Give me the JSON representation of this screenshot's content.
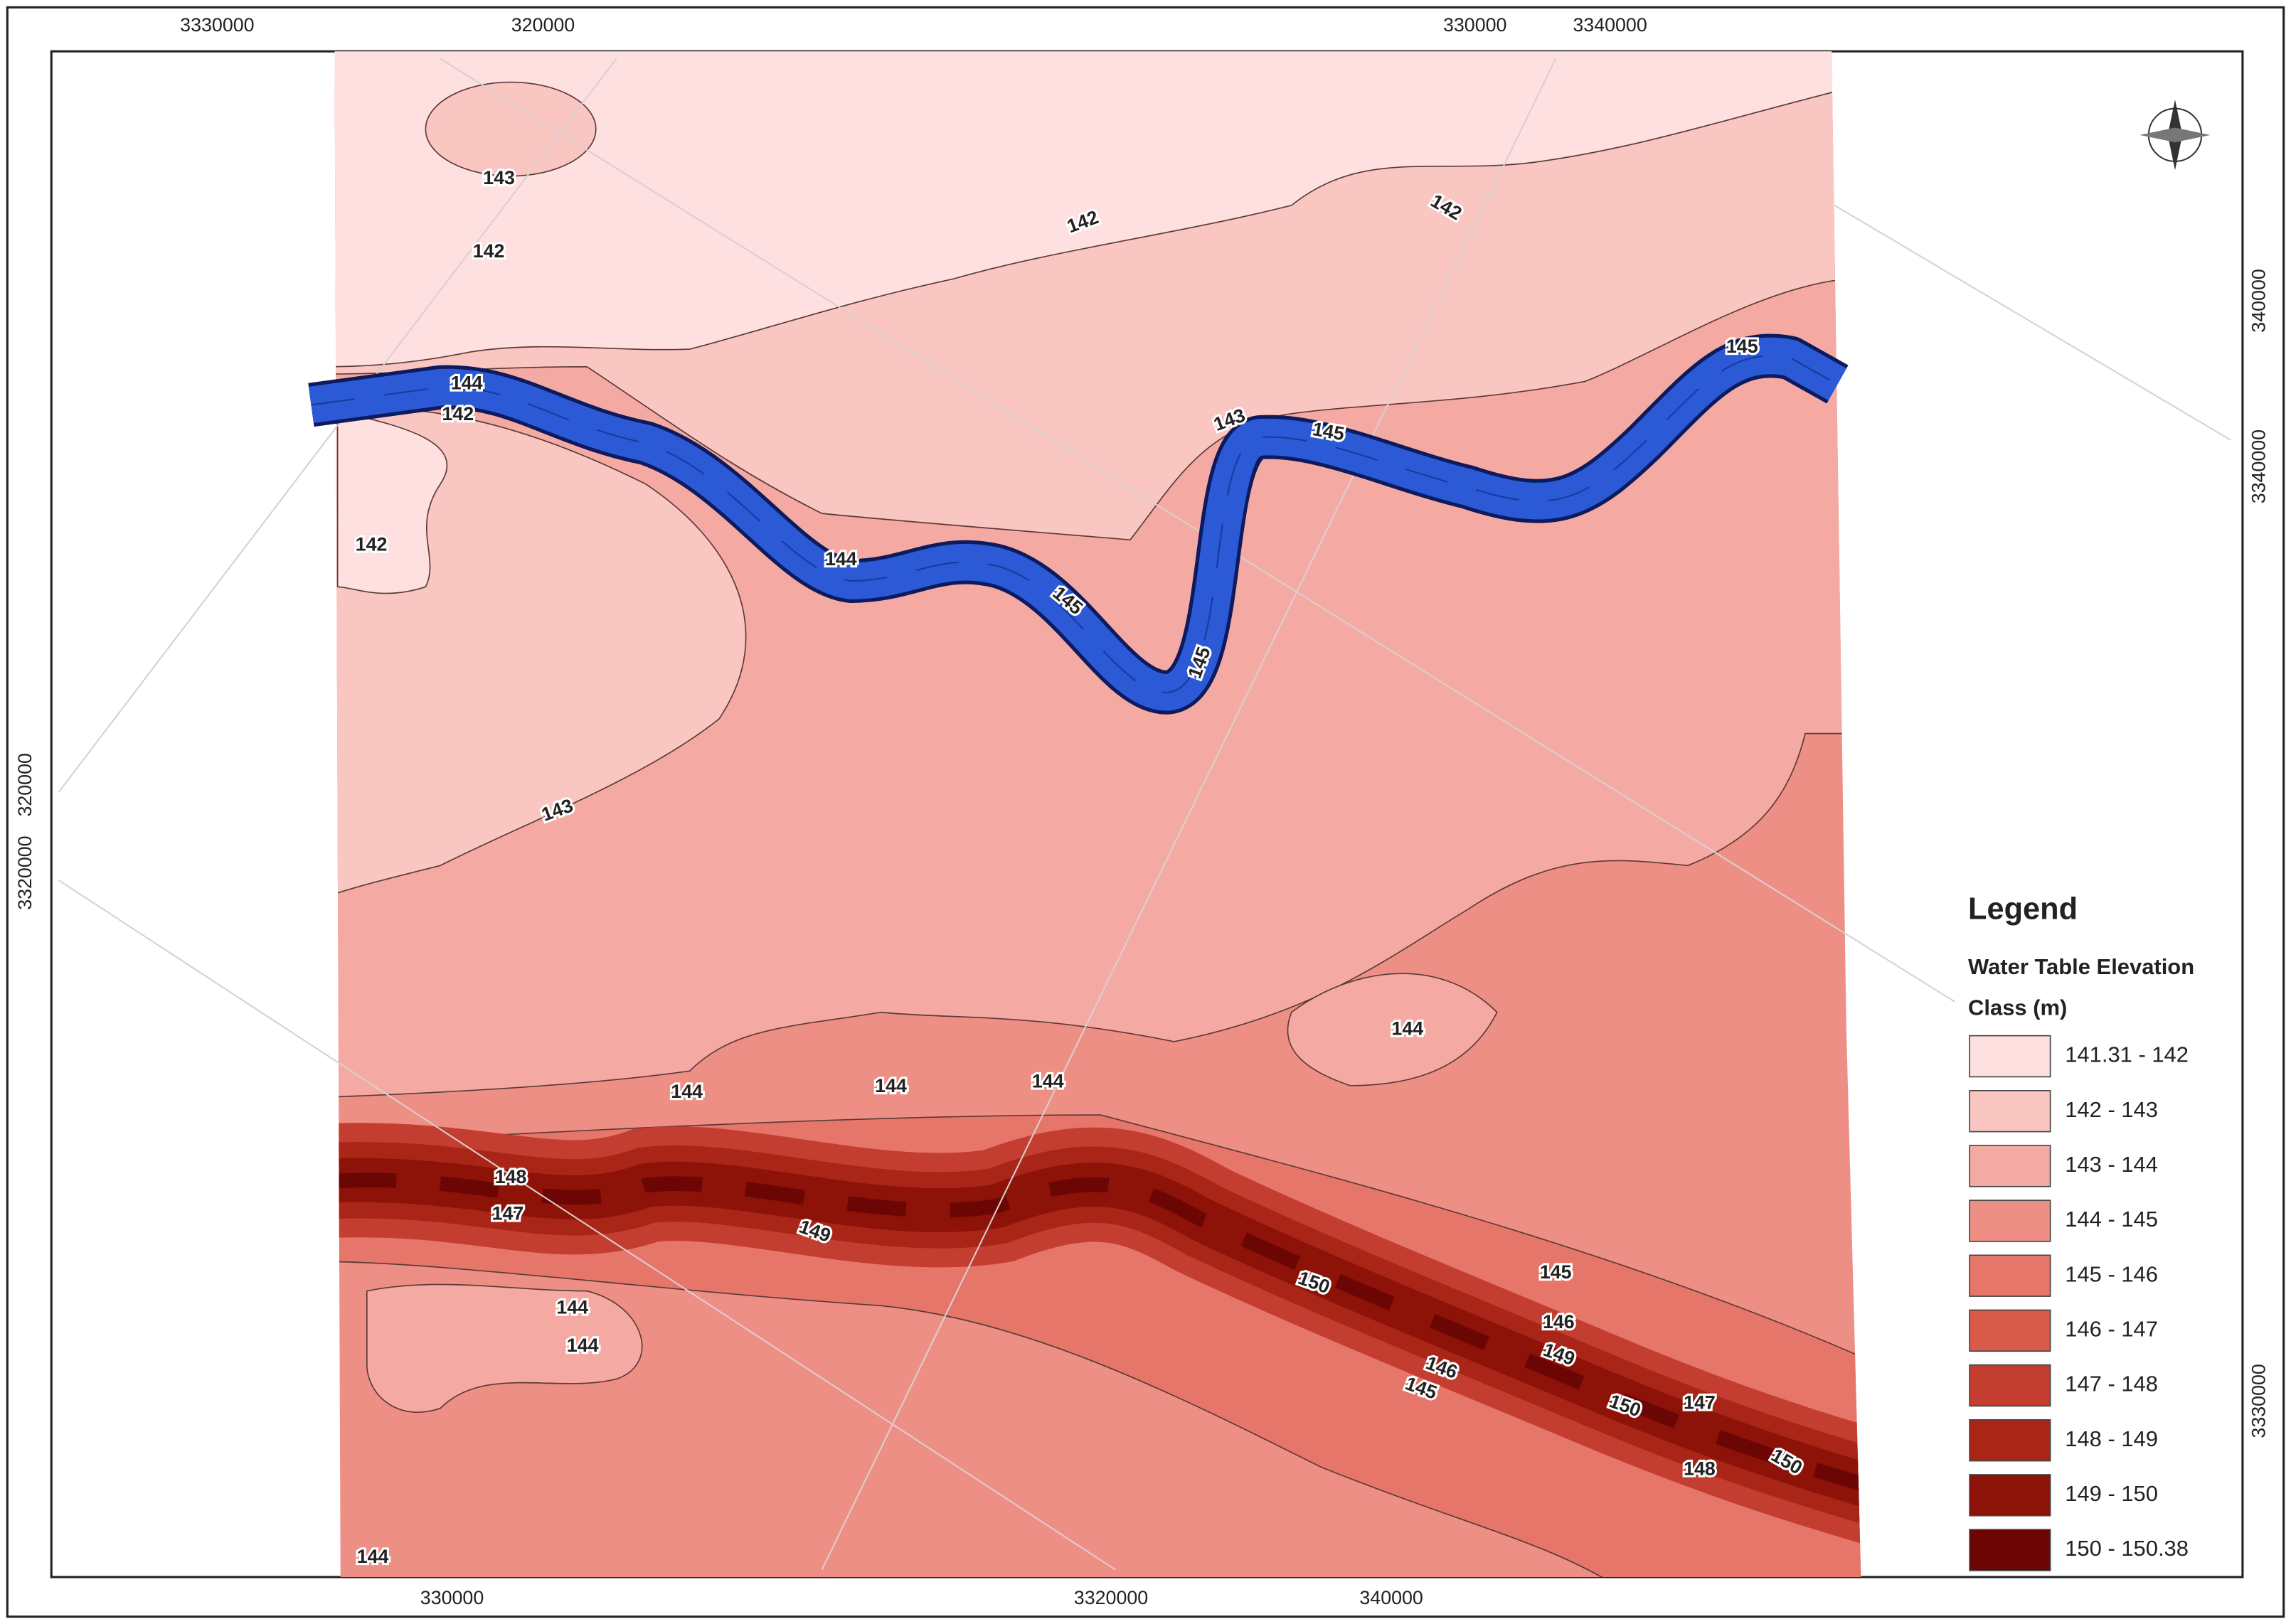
{
  "coordinates": {
    "top": [
      "3330000",
      "320000",
      "330000",
      "3340000"
    ],
    "bottom": [
      "330000",
      "3320000",
      "340000"
    ],
    "left": [
      "320000",
      "3320000"
    ],
    "right": [
      "340000",
      "3340000",
      "3330000"
    ]
  },
  "contour_labels": [
    "143",
    "142",
    "142",
    "142",
    "144",
    "142",
    "142",
    "143",
    "145",
    "145",
    "144",
    "145",
    "145",
    "143",
    "144",
    "144",
    "144",
    "144",
    "148",
    "147",
    "149",
    "150",
    "145",
    "146",
    "149",
    "146",
    "145",
    "147",
    "150",
    "150",
    "148",
    "144",
    "144",
    "144"
  ],
  "legend": {
    "title": "Legend",
    "heading": [
      "Water Table Elevation",
      "Class (m)"
    ],
    "classes": [
      {
        "label": "141.31 - 142",
        "color": "#fde0df"
      },
      {
        "label": "142 - 143",
        "color": "#f9c6c2"
      },
      {
        "label": "143 - 144",
        "color": "#f4aaa3"
      },
      {
        "label": "144 - 145",
        "color": "#ee8f85"
      },
      {
        "label": "145 - 146",
        "color": "#e6766a"
      },
      {
        "label": "146 - 147",
        "color": "#d85a4b"
      },
      {
        "label": "147 - 148",
        "color": "#c33e30"
      },
      {
        "label": "148 - 149",
        "color": "#a92518"
      },
      {
        "label": "149 - 150",
        "color": "#8d1208"
      },
      {
        "label": "150 - 150.38",
        "color": "#6b0604"
      }
    ]
  }
}
